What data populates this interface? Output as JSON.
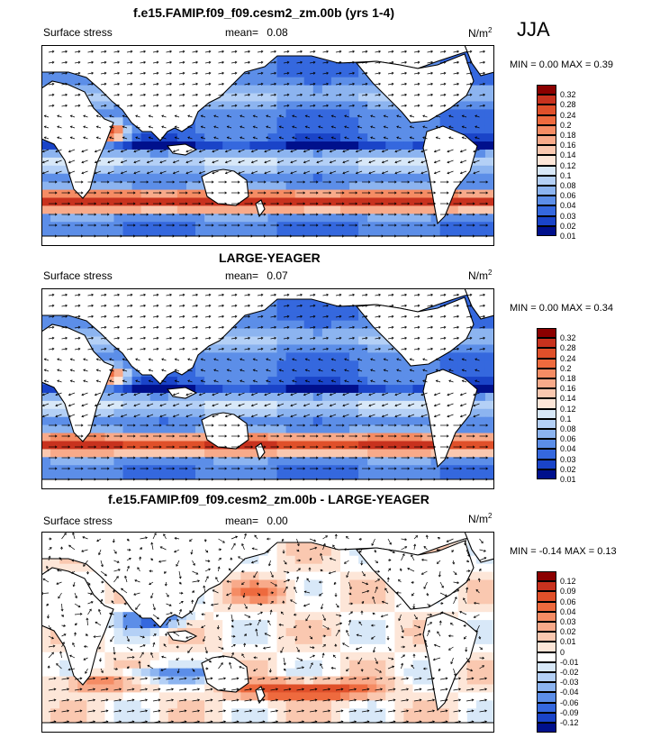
{
  "season": "JJA",
  "chart_data": [
    {
      "type": "heatmap",
      "title": "f.e15.FAMIP.f09_f09.cesm2_zm.00b (yrs 1-4)",
      "variable": "Surface stress",
      "mean_label": "mean=",
      "mean": "0.08",
      "units": "N/m",
      "units_sup": "2",
      "minmax_text": "MIN =   0.00 MAX =   0.39",
      "colorbar": [
        "0.32",
        "0.28",
        "0.24",
        "0.2",
        "0.18",
        "0.16",
        "0.14",
        "0.12",
        "0.1",
        "0.08",
        "0.06",
        "0.04",
        "0.03",
        "0.02",
        "0.01"
      ],
      "colors": [
        "#8b0000",
        "#c8321e",
        "#e0502a",
        "#ee6a3e",
        "#f58c64",
        "#f8aa8a",
        "#fac8b0",
        "#fde6d8",
        "#d8e8f8",
        "#b4d0f6",
        "#8cb4f0",
        "#5c8ee8",
        "#3568de",
        "#1a44c8",
        "#00108c"
      ]
    },
    {
      "type": "heatmap",
      "title": "LARGE-YEAGER",
      "variable": "Surface stress",
      "mean_label": "mean=",
      "mean": "0.07",
      "units": "N/m",
      "units_sup": "2",
      "minmax_text": "MIN =   0.00 MAX =   0.34",
      "colorbar": [
        "0.32",
        "0.28",
        "0.24",
        "0.2",
        "0.18",
        "0.16",
        "0.14",
        "0.12",
        "0.1",
        "0.08",
        "0.06",
        "0.04",
        "0.03",
        "0.02",
        "0.01"
      ],
      "colors": [
        "#8b0000",
        "#c8321e",
        "#e0502a",
        "#ee6a3e",
        "#f58c64",
        "#f8aa8a",
        "#fac8b0",
        "#fde6d8",
        "#d8e8f8",
        "#b4d0f6",
        "#8cb4f0",
        "#5c8ee8",
        "#3568de",
        "#1a44c8",
        "#00108c"
      ]
    },
    {
      "type": "heatmap",
      "title": "f.e15.FAMIP.f09_f09.cesm2_zm.00b - LARGE-YEAGER",
      "variable": "Surface stress",
      "mean_label": "mean=",
      "mean": "0.00",
      "units": "N/m",
      "units_sup": "2",
      "minmax_text": "MIN =  -0.14 MAX =   0.13",
      "colorbar": [
        "0.12",
        "0.09",
        "0.06",
        "0.04",
        "0.03",
        "0.02",
        "0.01",
        "0",
        "-0.01",
        "-0.02",
        "-0.03",
        "-0.04",
        "-0.06",
        "-0.09",
        "-0.12"
      ],
      "colors": [
        "#8b0000",
        "#c8321e",
        "#e0502a",
        "#ee6a3e",
        "#f58c64",
        "#f8aa8a",
        "#fac8b0",
        "#fde6d8",
        "#ffffff",
        "#d8e8f8",
        "#b4d0f6",
        "#8cb4f0",
        "#5c8ee8",
        "#3568de",
        "#1a44c8",
        "#00108c"
      ]
    }
  ]
}
